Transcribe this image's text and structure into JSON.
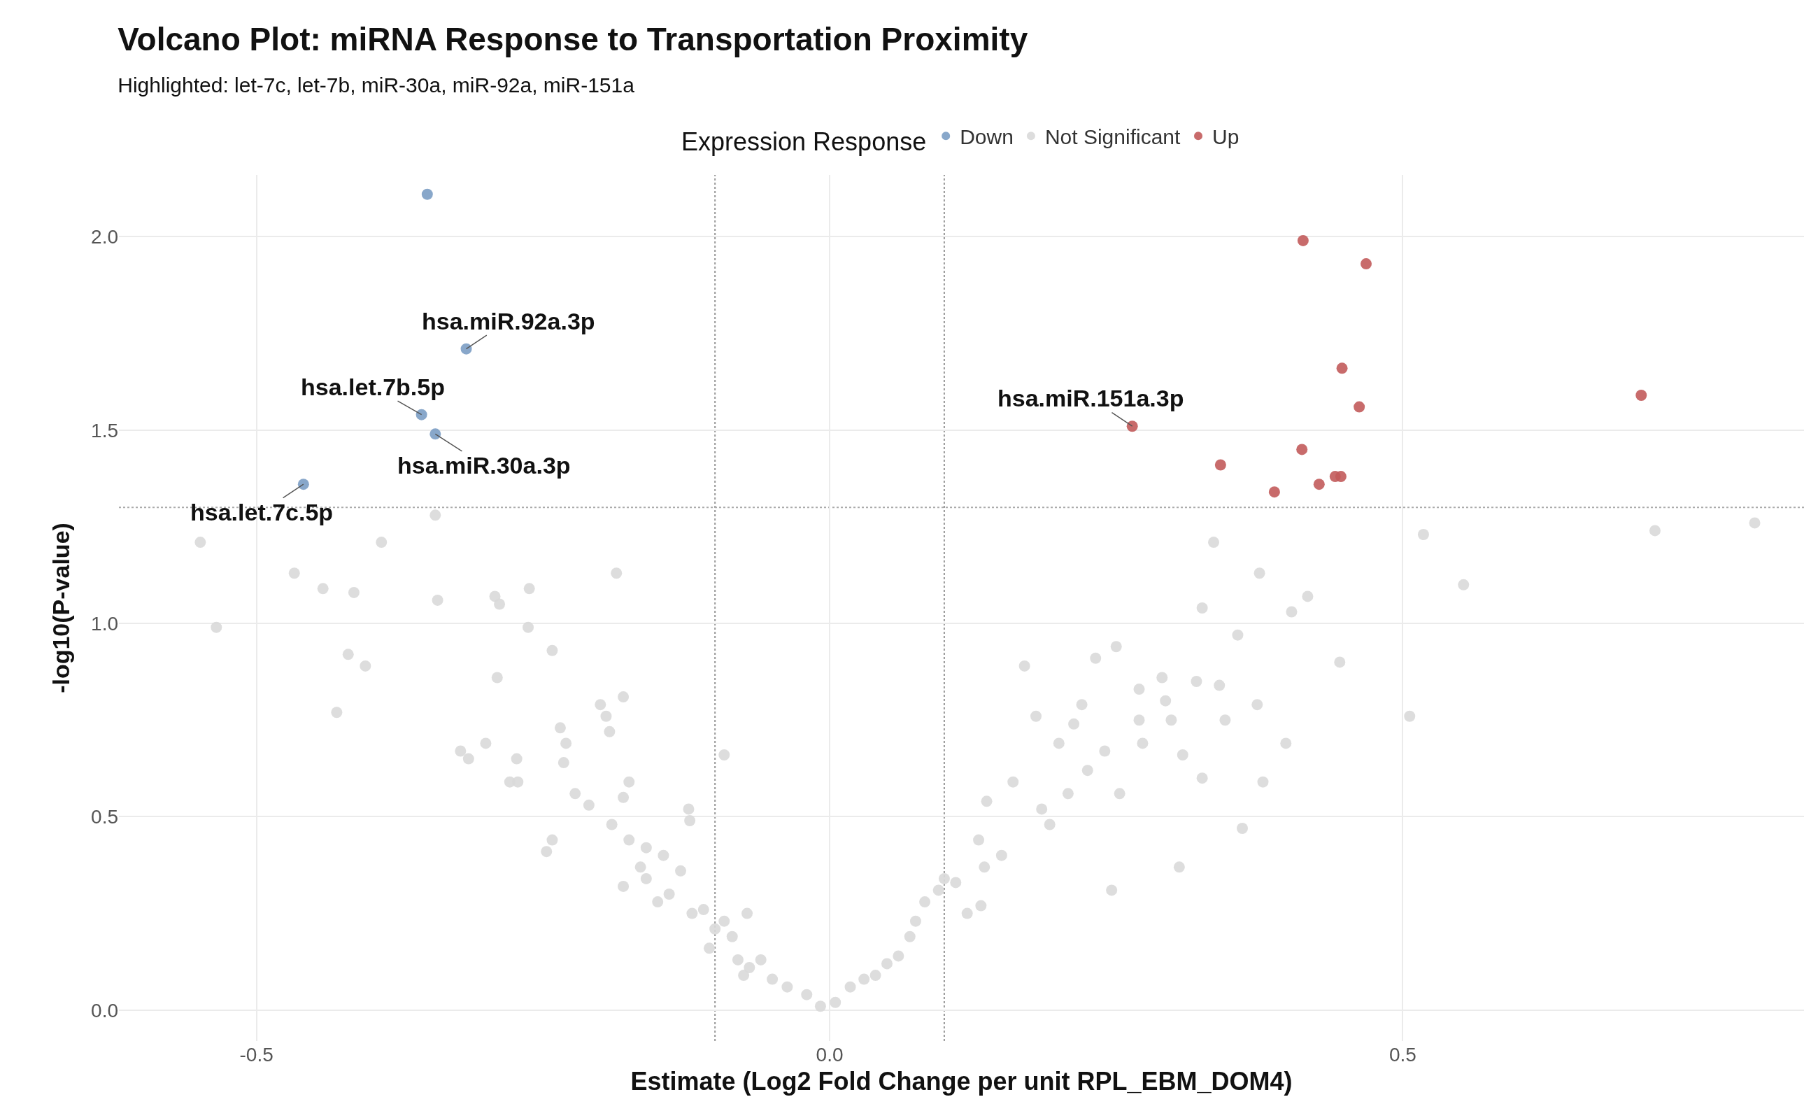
{
  "chart_data": {
    "type": "scatter",
    "title": "Volcano Plot: miRNA Response to Transportation Proximity",
    "subtitle": "Highlighted: let-7c, let-7b, miR-30a, miR-92a, miR-151a",
    "xlabel": "Estimate (Log2 Fold Change per unit RPL_EBM_DOM4)",
    "ylabel": "-log10(P-value)",
    "legend_title": "Expression Response",
    "legend": "top",
    "grid": true,
    "marker": "circle",
    "xlim": [
      -0.62,
      0.85
    ],
    "ylim": [
      -0.08,
      2.16
    ],
    "xticks": [
      -0.5,
      {
        "value": 0,
        "label": "0.0"
      },
      0.5
    ],
    "yticks": [
      {
        "value": 0,
        "label": "0.0"
      },
      0.5,
      {
        "value": 1,
        "label": "1.0"
      },
      1.5,
      {
        "value": 2,
        "label": "2.0"
      }
    ],
    "series": [
      {
        "name": "Down",
        "color": "#7b9dc4",
        "x": [
          -0.351,
          -0.317,
          -0.356,
          -0.344,
          -0.459
        ],
        "values": [
          2.11,
          1.71,
          1.54,
          1.49,
          1.36
        ]
      },
      {
        "name": "Not Significant",
        "color": "#d9d9d9",
        "x": [
          -0.549,
          -0.535,
          -0.467,
          -0.442,
          -0.415,
          -0.391,
          -0.344,
          -0.342,
          -0.42,
          -0.405,
          -0.43,
          -0.292,
          -0.288,
          -0.262,
          -0.263,
          -0.186,
          -0.242,
          -0.29,
          -0.322,
          -0.315,
          -0.3,
          -0.273,
          -0.279,
          -0.272,
          -0.235,
          -0.23,
          -0.232,
          -0.2,
          -0.195,
          -0.18,
          -0.192,
          -0.222,
          -0.21,
          -0.242,
          -0.247,
          -0.175,
          -0.18,
          -0.19,
          -0.175,
          -0.16,
          -0.145,
          -0.16,
          -0.18,
          -0.14,
          -0.123,
          -0.122,
          -0.092,
          -0.13,
          -0.11,
          -0.1,
          -0.105,
          -0.085,
          -0.08,
          -0.07,
          -0.06,
          -0.05,
          -0.037,
          -0.02,
          -0.008,
          -0.15,
          -0.165,
          -0.12,
          -0.092,
          -0.072,
          -0.075,
          0.005,
          0.018,
          0.03,
          0.04,
          0.05,
          0.06,
          0.07,
          0.075,
          0.083,
          0.095,
          0.1,
          0.11,
          0.12,
          0.135,
          0.132,
          0.13,
          0.15,
          0.137,
          0.16,
          0.17,
          0.18,
          0.185,
          0.192,
          0.2,
          0.208,
          0.213,
          0.22,
          0.225,
          0.232,
          0.24,
          0.246,
          0.25,
          0.253,
          0.27,
          0.273,
          0.27,
          0.29,
          0.293,
          0.298,
          0.305,
          0.308,
          0.32,
          0.325,
          0.325,
          0.335,
          0.34,
          0.345,
          0.356,
          0.36,
          0.375,
          0.373,
          0.378,
          0.398,
          0.403,
          0.417,
          0.445,
          0.506,
          0.518,
          0.553,
          0.72,
          0.807
        ],
        "values": [
          1.21,
          0.99,
          1.13,
          1.09,
          1.08,
          1.21,
          1.28,
          1.06,
          0.92,
          0.89,
          0.77,
          1.07,
          1.05,
          1.09,
          0.99,
          1.13,
          0.93,
          0.86,
          0.67,
          0.65,
          0.69,
          0.65,
          0.59,
          0.59,
          0.73,
          0.69,
          0.64,
          0.79,
          0.76,
          0.81,
          0.72,
          0.56,
          0.53,
          0.44,
          0.41,
          0.59,
          0.55,
          0.48,
          0.44,
          0.42,
          0.4,
          0.34,
          0.32,
          0.3,
          0.52,
          0.49,
          0.66,
          0.36,
          0.26,
          0.21,
          0.16,
          0.19,
          0.13,
          0.11,
          0.13,
          0.08,
          0.06,
          0.04,
          0.01,
          0.28,
          0.37,
          0.25,
          0.23,
          0.25,
          0.09,
          0.02,
          0.06,
          0.08,
          0.09,
          0.12,
          0.14,
          0.19,
          0.23,
          0.28,
          0.31,
          0.34,
          0.33,
          0.25,
          0.37,
          0.27,
          0.44,
          0.4,
          0.54,
          0.59,
          0.89,
          0.76,
          0.52,
          0.48,
          0.69,
          0.56,
          0.74,
          0.79,
          0.62,
          0.91,
          0.67,
          0.31,
          0.94,
          0.56,
          0.83,
          0.69,
          0.75,
          0.86,
          0.8,
          0.75,
          0.37,
          0.66,
          0.85,
          1.04,
          0.6,
          1.21,
          0.84,
          0.75,
          0.97,
          0.47,
          1.13,
          0.79,
          0.59,
          0.69,
          1.03,
          1.07,
          0.9,
          0.76,
          1.23,
          1.1,
          1.24,
          1.26
        ]
      },
      {
        "name": "Up",
        "color": "#c25b5b",
        "x": [
          0.413,
          0.468,
          0.447,
          0.462,
          0.708,
          0.264,
          0.412,
          0.341,
          0.441,
          0.446,
          0.427,
          0.388
        ],
        "values": [
          1.99,
          1.93,
          1.66,
          1.56,
          1.59,
          1.51,
          1.45,
          1.41,
          1.38,
          1.38,
          1.36,
          1.34
        ]
      }
    ],
    "ref_lines": [
      {
        "axis": "x",
        "value": -0.1,
        "line_style": "dotted",
        "color": "#999999"
      },
      {
        "axis": "x",
        "value": 0.1,
        "line_style": "dotted",
        "color": "#999999"
      },
      {
        "axis": "y",
        "value": 1.3,
        "line_style": "dotted",
        "color": "#aaaaaa"
      }
    ],
    "annotations": [
      {
        "text": "hsa.miR.92a.3p",
        "x": -0.317,
        "y": 1.71
      },
      {
        "text": "hsa.let.7b.5p",
        "x": -0.356,
        "y": 1.54
      },
      {
        "text": "hsa.miR.30a.3p",
        "x": -0.344,
        "y": 1.49
      },
      {
        "text": "hsa.let.7c.5p",
        "x": -0.459,
        "y": 1.36
      },
      {
        "text": "hsa.miR.151a.3p",
        "x": 0.264,
        "y": 1.51
      }
    ]
  }
}
